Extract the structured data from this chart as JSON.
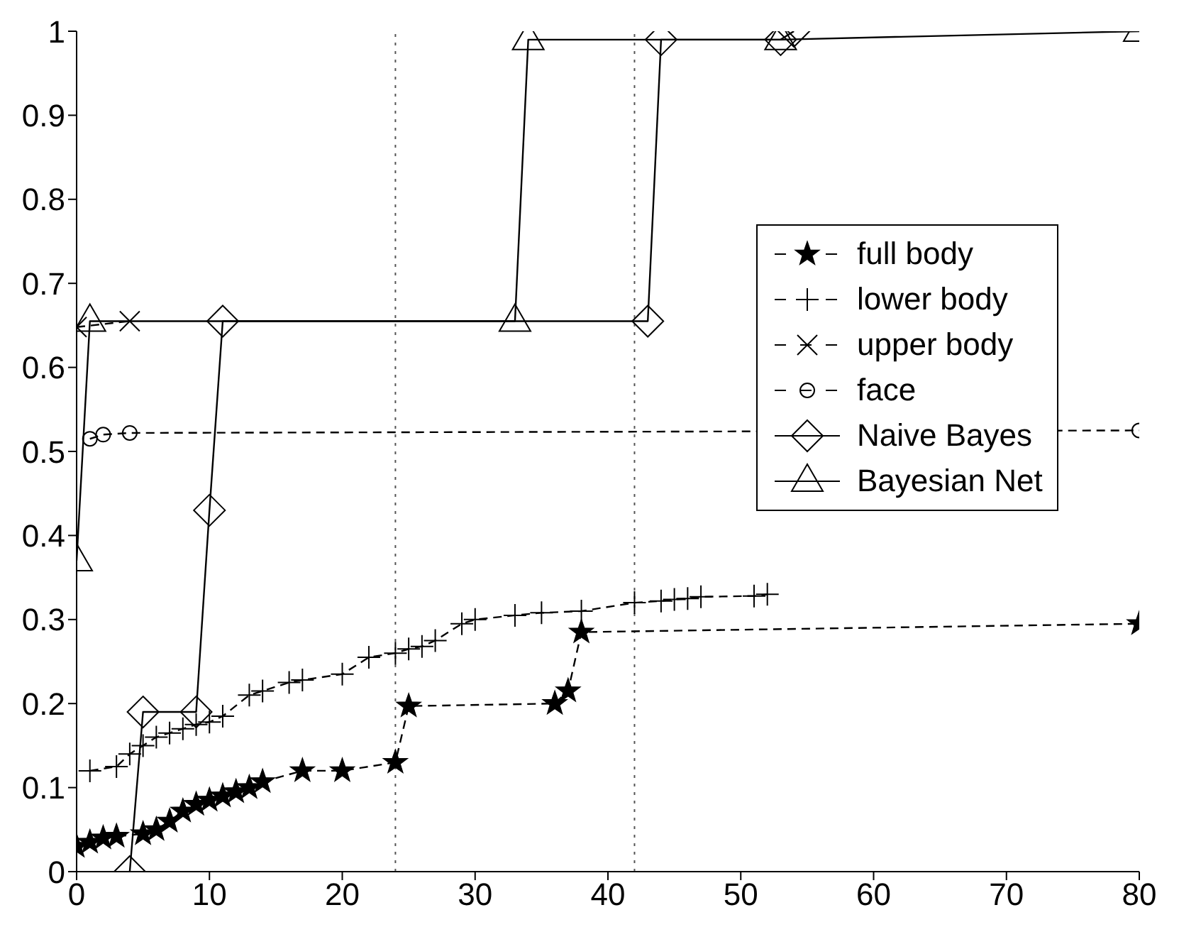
{
  "chart_data": {
    "type": "line",
    "xlim": [
      0,
      80
    ],
    "xticks": [
      0,
      10,
      20,
      30,
      40,
      50,
      60,
      70,
      80
    ],
    "ylim": [
      0,
      1
    ],
    "yticks": [
      0,
      0.1,
      0.2,
      0.3,
      0.4,
      0.5,
      0.6,
      0.7,
      0.8,
      0.9,
      1
    ],
    "legend": "right",
    "ref_lines": [
      {
        "axis": "x",
        "value": 24,
        "color": "#555555",
        "line_style": "dotted"
      },
      {
        "axis": "x",
        "value": 42,
        "color": "#555555",
        "line_style": "dotted"
      }
    ],
    "series": [
      {
        "name": "full body",
        "color": "#000000",
        "marker": "star",
        "line_style": "dashed",
        "x": [
          0,
          1,
          2,
          3,
          5,
          6,
          7,
          8,
          9,
          10,
          11,
          12,
          13,
          14,
          17,
          20,
          24,
          25,
          36,
          37,
          38,
          80
        ],
        "values": [
          0.03,
          0.035,
          0.04,
          0.042,
          0.045,
          0.05,
          0.06,
          0.072,
          0.08,
          0.085,
          0.09,
          0.095,
          0.1,
          0.107,
          0.12,
          0.12,
          0.13,
          0.197,
          0.2,
          0.215,
          0.285,
          0.295
        ]
      },
      {
        "name": "lower body",
        "color": "#000000",
        "marker": "plus",
        "line_style": "dashed",
        "x": [
          1,
          3,
          4,
          5,
          6,
          7,
          8,
          9,
          10,
          11,
          13,
          14,
          16,
          17,
          20,
          22,
          24,
          25,
          26,
          27,
          29,
          30,
          33,
          35,
          38,
          42,
          44,
          45,
          46,
          47,
          51,
          52
        ],
        "values": [
          0.12,
          0.125,
          0.14,
          0.15,
          0.16,
          0.165,
          0.17,
          0.175,
          0.178,
          0.185,
          0.21,
          0.215,
          0.225,
          0.228,
          0.235,
          0.255,
          0.26,
          0.265,
          0.268,
          0.275,
          0.295,
          0.3,
          0.305,
          0.308,
          0.31,
          0.32,
          0.322,
          0.324,
          0.325,
          0.327,
          0.328,
          0.33
        ]
      },
      {
        "name": "upper body",
        "color": "#000000",
        "marker": "cross",
        "line_style": "dashed",
        "x": [
          0,
          4
        ],
        "values": [
          0.648,
          0.655
        ]
      },
      {
        "name": "face",
        "color": "#000000",
        "marker": "circle",
        "line_style": "dashed",
        "x": [
          1,
          2,
          4,
          80
        ],
        "values": [
          0.515,
          0.52,
          0.522,
          0.525
        ]
      },
      {
        "name": "Naive Bayes",
        "color": "#000000",
        "marker": "diamond",
        "line_style": "solid",
        "x": [
          4,
          5,
          9,
          10,
          11,
          43,
          44,
          53,
          54
        ],
        "values": [
          0,
          0.19,
          0.19,
          0.43,
          0.655,
          0.655,
          0.99,
          0.99,
          1
        ]
      },
      {
        "name": "Bayesian Net",
        "color": "#000000",
        "marker": "triangle",
        "line_style": "solid",
        "x": [
          0,
          1,
          33,
          34,
          53,
          80
        ],
        "values": [
          0.37,
          0.655,
          0.655,
          0.99,
          0.99,
          1
        ]
      }
    ]
  }
}
